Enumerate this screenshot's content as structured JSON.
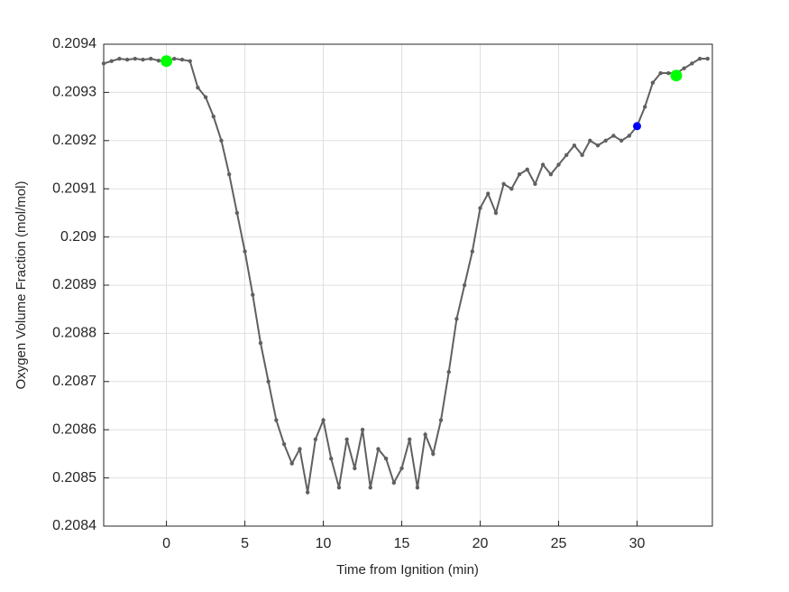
{
  "chart_data": {
    "type": "line",
    "xlabel": "Time from Ignition (min)",
    "ylabel": "Oxygen Volume Fraction (mol/mol)",
    "xlim": [
      -4,
      34.8
    ],
    "xticks": [
      0,
      5,
      10,
      15,
      20,
      25,
      30
    ],
    "ylim": [
      0.2084,
      0.2094
    ],
    "yticks": [
      0.2084,
      0.2085,
      0.2086,
      0.2087,
      0.2088,
      0.2089,
      0.209,
      0.2091,
      0.2092,
      0.2093,
      0.2094
    ],
    "grid": true,
    "series": [
      {
        "style": "line",
        "color": "#606060",
        "x": [
          -4,
          -3.5,
          -3,
          -2.5,
          -2,
          -1.5,
          -1,
          -0.5,
          0,
          0.5,
          1,
          1.5,
          2,
          2.5,
          3,
          3.5,
          4,
          4.5,
          5,
          5.5,
          6,
          6.5,
          7,
          7.5,
          8,
          8.5,
          9,
          9.5,
          10,
          10.5,
          11,
          11.5,
          12,
          12.5,
          13,
          13.5,
          14,
          14.5,
          15,
          15.5,
          16,
          16.5,
          17,
          17.5,
          18,
          18.5,
          19,
          19.5,
          20,
          20.5,
          21,
          21.5,
          22,
          22.5,
          23,
          23.5,
          24,
          24.5,
          25,
          25.5,
          26,
          26.5,
          27,
          27.5,
          28,
          28.5,
          29,
          29.5,
          30,
          30.5,
          31,
          31.5,
          32,
          32.5,
          33,
          33.5,
          34,
          34.5
        ],
        "values": [
          0.20936,
          0.209365,
          0.20937,
          0.209368,
          0.20937,
          0.209368,
          0.20937,
          0.209366,
          0.209365,
          0.20937,
          0.209368,
          0.209365,
          0.20931,
          0.20929,
          0.20925,
          0.2092,
          0.20913,
          0.20905,
          0.20897,
          0.20888,
          0.20878,
          0.2087,
          0.20862,
          0.20857,
          0.20853,
          0.20856,
          0.20847,
          0.20858,
          0.20862,
          0.20854,
          0.20848,
          0.20858,
          0.20852,
          0.2086,
          0.20848,
          0.20856,
          0.20854,
          0.20849,
          0.20852,
          0.20858,
          0.20848,
          0.20859,
          0.20855,
          0.20862,
          0.20872,
          0.20883,
          0.2089,
          0.20897,
          0.20906,
          0.20909,
          0.20905,
          0.20911,
          0.2091,
          0.20913,
          0.20914,
          0.20911,
          0.20915,
          0.20913,
          0.20915,
          0.20917,
          0.20919,
          0.20917,
          0.2092,
          0.20919,
          0.2092,
          0.20921,
          0.2092,
          0.20921,
          0.20923,
          0.20927,
          0.20932,
          0.20934,
          0.20934,
          0.20934,
          0.20935,
          0.20936,
          0.20937,
          0.20937
        ]
      },
      {
        "style": "points",
        "color": "#00ff00",
        "x": [
          0,
          32.5
        ],
        "values": [
          0.209365,
          0.209335
        ]
      },
      {
        "style": "points",
        "color": "#0000ff",
        "x": [
          30
        ],
        "values": [
          0.20923
        ]
      }
    ]
  }
}
